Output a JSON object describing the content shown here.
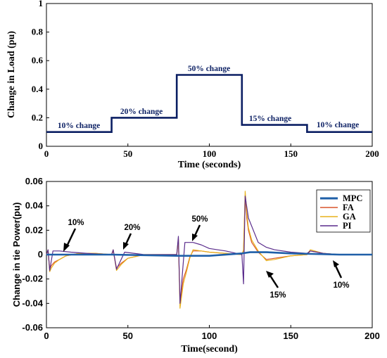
{
  "chart_data": [
    {
      "type": "line",
      "title": "",
      "xlabel": "Time (seconds)",
      "ylabel": "Change in Load (pu)",
      "xlim": [
        0,
        200
      ],
      "ylim": [
        0,
        1
      ],
      "xticks": [
        "0",
        "50",
        "100",
        "150",
        "200"
      ],
      "yticks": [
        "0",
        "0.2",
        "0.4",
        "0.6",
        "0.8",
        "1"
      ],
      "grid": false,
      "series": [
        {
          "color": "#0b1f63",
          "step": true,
          "x": [
            0,
            40,
            40,
            80,
            80,
            120,
            120,
            160,
            160,
            200
          ],
          "y": [
            0.1,
            0.1,
            0.2,
            0.2,
            0.5,
            0.5,
            0.15,
            0.15,
            0.1,
            0.1
          ]
        }
      ],
      "annotations": [
        {
          "text": "10% change",
          "x": 20,
          "y": 0.13
        },
        {
          "text": "20% change",
          "x": 59,
          "y": 0.23
        },
        {
          "text": "50% change",
          "x": 100,
          "y": 0.53
        },
        {
          "text": "15% change",
          "x": 140,
          "y": 0.18
        },
        {
          "text": "10% change",
          "x": 180,
          "y": 0.13
        }
      ]
    },
    {
      "type": "line",
      "title": "",
      "xlabel": "Time(second)",
      "ylabel": "Change in tie Power(pu)",
      "xlim": [
        0,
        200
      ],
      "ylim": [
        -0.06,
        0.06
      ],
      "xticks": [
        "0",
        "50",
        "100",
        "150",
        "200"
      ],
      "yticks": [
        "-0.06",
        "-0.04",
        "-0.02",
        "0",
        "0.02",
        "0.04",
        "0.06"
      ],
      "grid": false,
      "legend_position": "top-right",
      "series": [
        {
          "name": "MPC",
          "color": "#1f5fa8",
          "x": [
            0,
            40,
            80,
            100,
            120,
            125,
            135,
            150,
            165,
            180,
            200
          ],
          "y": [
            0,
            0,
            -0.001,
            -0.001,
            0.001,
            0.002,
            0.002,
            0.001,
            0.0005,
            0,
            0
          ]
        },
        {
          "name": "FA",
          "color": "#d9542b",
          "x": [
            0,
            1,
            2,
            3,
            5,
            8,
            12,
            20,
            30,
            40,
            41,
            43,
            46,
            50,
            60,
            70,
            80,
            81,
            82,
            84,
            86,
            88,
            90,
            95,
            100,
            110,
            120,
            121,
            122,
            123,
            124,
            126,
            130,
            135,
            140,
            150,
            160,
            162,
            170,
            180,
            200
          ],
          "y": [
            0,
            0.003,
            -0.012,
            -0.009,
            -0.006,
            -0.004,
            -0.001,
            0.001,
            0.001,
            0,
            0.003,
            -0.011,
            -0.007,
            -0.003,
            0,
            0,
            0,
            0.012,
            -0.04,
            -0.02,
            -0.012,
            -0.002,
            0.003,
            0.003,
            0.002,
            0.001,
            0,
            0.003,
            0.048,
            0.03,
            0.02,
            0.01,
            0.002,
            -0.004,
            -0.003,
            -0.001,
            0,
            0.003,
            0.001,
            0,
            0
          ]
        },
        {
          "name": "GA",
          "color": "#e8b21c",
          "x": [
            0,
            1,
            2,
            3,
            5,
            8,
            12,
            20,
            30,
            40,
            41,
            43,
            46,
            50,
            60,
            70,
            80,
            81,
            82,
            84,
            86,
            88,
            90,
            95,
            100,
            110,
            120,
            121,
            122,
            123,
            124,
            126,
            130,
            135,
            140,
            150,
            160,
            162,
            170,
            180,
            200
          ],
          "y": [
            0,
            0.004,
            -0.014,
            -0.011,
            -0.007,
            -0.004,
            -0.001,
            0.001,
            0.001,
            0,
            0.004,
            -0.013,
            -0.008,
            -0.003,
            0,
            0,
            0,
            0.013,
            -0.044,
            -0.024,
            -0.014,
            -0.003,
            0.004,
            0.003,
            0.002,
            0.001,
            0,
            0.004,
            0.052,
            0.034,
            0.022,
            0.012,
            0.003,
            -0.005,
            -0.004,
            -0.001,
            0,
            0.004,
            0.001,
            0,
            0
          ]
        },
        {
          "name": "PI",
          "color": "#5a2c8c",
          "x": [
            0,
            1,
            2,
            4,
            8,
            15,
            25,
            40,
            41,
            43,
            48,
            60,
            80,
            81,
            82,
            85,
            90,
            95,
            100,
            110,
            120,
            121,
            122,
            124,
            127,
            130,
            135,
            140,
            150,
            160,
            162,
            170,
            180,
            200
          ],
          "y": [
            0,
            0.004,
            -0.013,
            0.003,
            0.003,
            0.002,
            0.001,
            0,
            0.004,
            -0.012,
            0.002,
            0,
            0,
            0.015,
            -0.04,
            0.01,
            0.01,
            0.008,
            0.005,
            0.003,
            0,
            -0.024,
            0.048,
            0.03,
            0.02,
            0.01,
            0.006,
            0.004,
            0.002,
            0.001,
            0.003,
            0.001,
            0,
            0
          ]
        }
      ],
      "annotations": [
        {
          "text": "10%",
          "x": 18,
          "y": 0.024
        },
        {
          "text": "20%",
          "x": 52,
          "y": 0.0195
        },
        {
          "text": "50%",
          "x": 94,
          "y": 0.0255
        },
        {
          "text": "15%",
          "x": 142,
          "y": -0.032
        },
        {
          "text": "10%",
          "x": 181,
          "y": -0.021
        }
      ]
    }
  ]
}
